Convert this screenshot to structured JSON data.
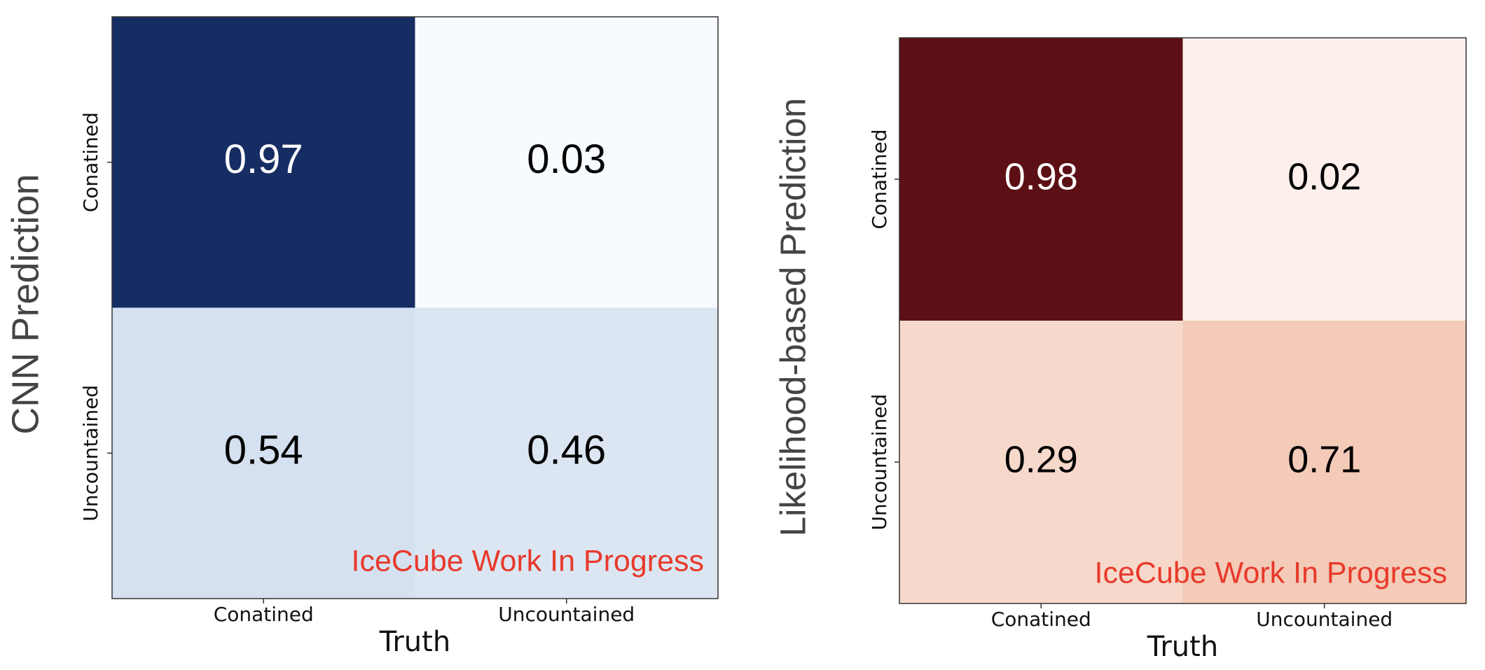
{
  "chart_data": [
    {
      "type": "heatmap",
      "xlabel": "Truth",
      "ylabel": "CNN Prediction",
      "x_categories": [
        "Conatined",
        "Uncountained"
      ],
      "y_categories": [
        "Conatined",
        "Uncountained"
      ],
      "values": [
        [
          0.97,
          0.03
        ],
        [
          0.54,
          0.46
        ]
      ],
      "colors": [
        [
          "#162d63",
          "#f7fbff"
        ],
        [
          "#d5e1f0",
          "#dce6f2"
        ]
      ],
      "annotation": "IceCube Work In Progress"
    },
    {
      "type": "heatmap",
      "xlabel": "Truth",
      "ylabel": "Likelihood-based Prediction",
      "x_categories": [
        "Conatined",
        "Uncountained"
      ],
      "y_categories": [
        "Conatined",
        "Uncountained"
      ],
      "values": [
        [
          0.98,
          0.02
        ],
        [
          0.29,
          0.71
        ]
      ],
      "colors": [
        [
          "#5c0f14",
          "#fdf0eb"
        ],
        [
          "#f7d9cb",
          "#f3cbb8"
        ]
      ],
      "annotation": "IceCube Work In Progress"
    }
  ]
}
